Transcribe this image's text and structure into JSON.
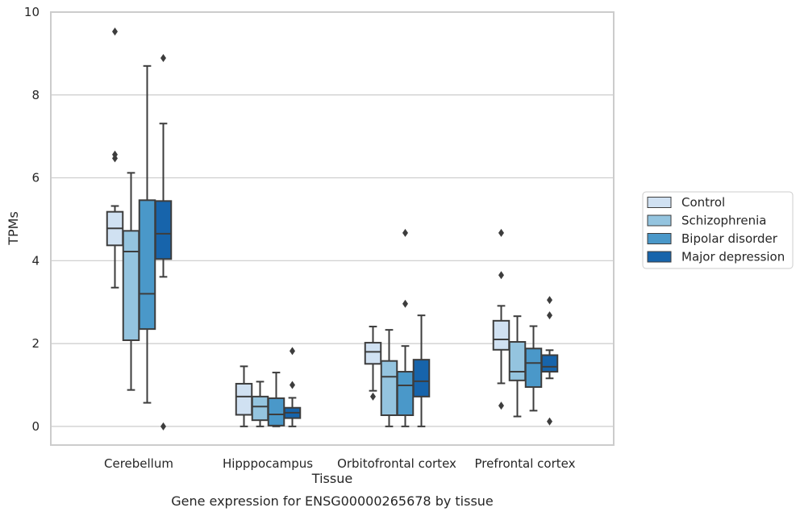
{
  "chart_data": {
    "type": "box",
    "title": "",
    "caption": "Gene expression for ENSG00000265678 by tissue",
    "xlabel": "Tissue",
    "ylabel": "TPMs",
    "ylim": [
      -0.45,
      10
    ],
    "yticks": [
      0,
      2,
      4,
      6,
      8,
      10
    ],
    "grid": "horizontal",
    "legend_position": "right",
    "categories": [
      "Cerebellum",
      "Hipppocampus",
      "Orbitofrontal cortex",
      "Prefrontal cortex"
    ],
    "series": [
      {
        "name": "Control",
        "color": "#d0e1f2",
        "boxes": [
          {
            "whisker_low": 3.35,
            "q1": 4.37,
            "median": 4.78,
            "q3": 5.18,
            "whisker_high": 5.32,
            "outliers": [
              6.47,
              6.56,
              9.53
            ]
          },
          {
            "whisker_low": 0.0,
            "q1": 0.28,
            "median": 0.72,
            "q3": 1.03,
            "whisker_high": 1.45,
            "outliers": []
          },
          {
            "whisker_low": 0.86,
            "q1": 1.51,
            "median": 1.8,
            "q3": 2.02,
            "whisker_high": 2.41,
            "outliers": [
              0.72
            ]
          },
          {
            "whisker_low": 1.04,
            "q1": 1.85,
            "median": 2.1,
            "q3": 2.55,
            "whisker_high": 2.91,
            "outliers": [
              0.5,
              3.65,
              4.67
            ]
          }
        ]
      },
      {
        "name": "Schizophrenia",
        "color": "#94c4df",
        "boxes": [
          {
            "whisker_low": 0.88,
            "q1": 2.08,
            "median": 4.22,
            "q3": 4.72,
            "whisker_high": 6.12,
            "outliers": []
          },
          {
            "whisker_low": 0.0,
            "q1": 0.15,
            "median": 0.48,
            "q3": 0.72,
            "whisker_high": 1.08,
            "outliers": []
          },
          {
            "whisker_low": 0.0,
            "q1": 0.27,
            "median": 1.2,
            "q3": 1.58,
            "whisker_high": 2.33,
            "outliers": []
          },
          {
            "whisker_low": 0.24,
            "q1": 1.11,
            "median": 1.32,
            "q3": 2.04,
            "whisker_high": 2.66,
            "outliers": []
          }
        ]
      },
      {
        "name": "Bipolar disorder",
        "color": "#4a98c9",
        "boxes": [
          {
            "whisker_low": 0.57,
            "q1": 2.35,
            "median": 3.2,
            "q3": 5.46,
            "whisker_high": 8.7,
            "outliers": []
          },
          {
            "whisker_low": 0.0,
            "q1": 0.02,
            "median": 0.29,
            "q3": 0.68,
            "whisker_high": 1.3,
            "outliers": []
          },
          {
            "whisker_low": 0.0,
            "q1": 0.27,
            "median": 0.99,
            "q3": 1.32,
            "whisker_high": 1.94,
            "outliers": [
              2.96,
              4.67
            ]
          },
          {
            "whisker_low": 0.38,
            "q1": 0.95,
            "median": 1.53,
            "q3": 1.88,
            "whisker_high": 2.42,
            "outliers": []
          }
        ]
      },
      {
        "name": "Major depression",
        "color": "#1764ab",
        "boxes": [
          {
            "whisker_low": 3.61,
            "q1": 4.04,
            "median": 4.65,
            "q3": 5.44,
            "whisker_high": 7.31,
            "outliers": [
              0.0,
              8.89
            ]
          },
          {
            "whisker_low": 0.0,
            "q1": 0.2,
            "median": 0.33,
            "q3": 0.45,
            "whisker_high": 0.69,
            "outliers": [
              1.0,
              1.82
            ]
          },
          {
            "whisker_low": 0.0,
            "q1": 0.72,
            "median": 1.09,
            "q3": 1.61,
            "whisker_high": 2.68,
            "outliers": []
          },
          {
            "whisker_low": 1.16,
            "q1": 1.32,
            "median": 1.44,
            "q3": 1.72,
            "whisker_high": 1.84,
            "outliers": [
              0.12,
              2.68,
              3.05
            ]
          }
        ]
      }
    ]
  },
  "colors": {
    "background": "#ffffff",
    "grid": "#cccccc",
    "axis_frame": "#cccccc",
    "box_edge": "#3d3d3d",
    "text": "#262626"
  }
}
